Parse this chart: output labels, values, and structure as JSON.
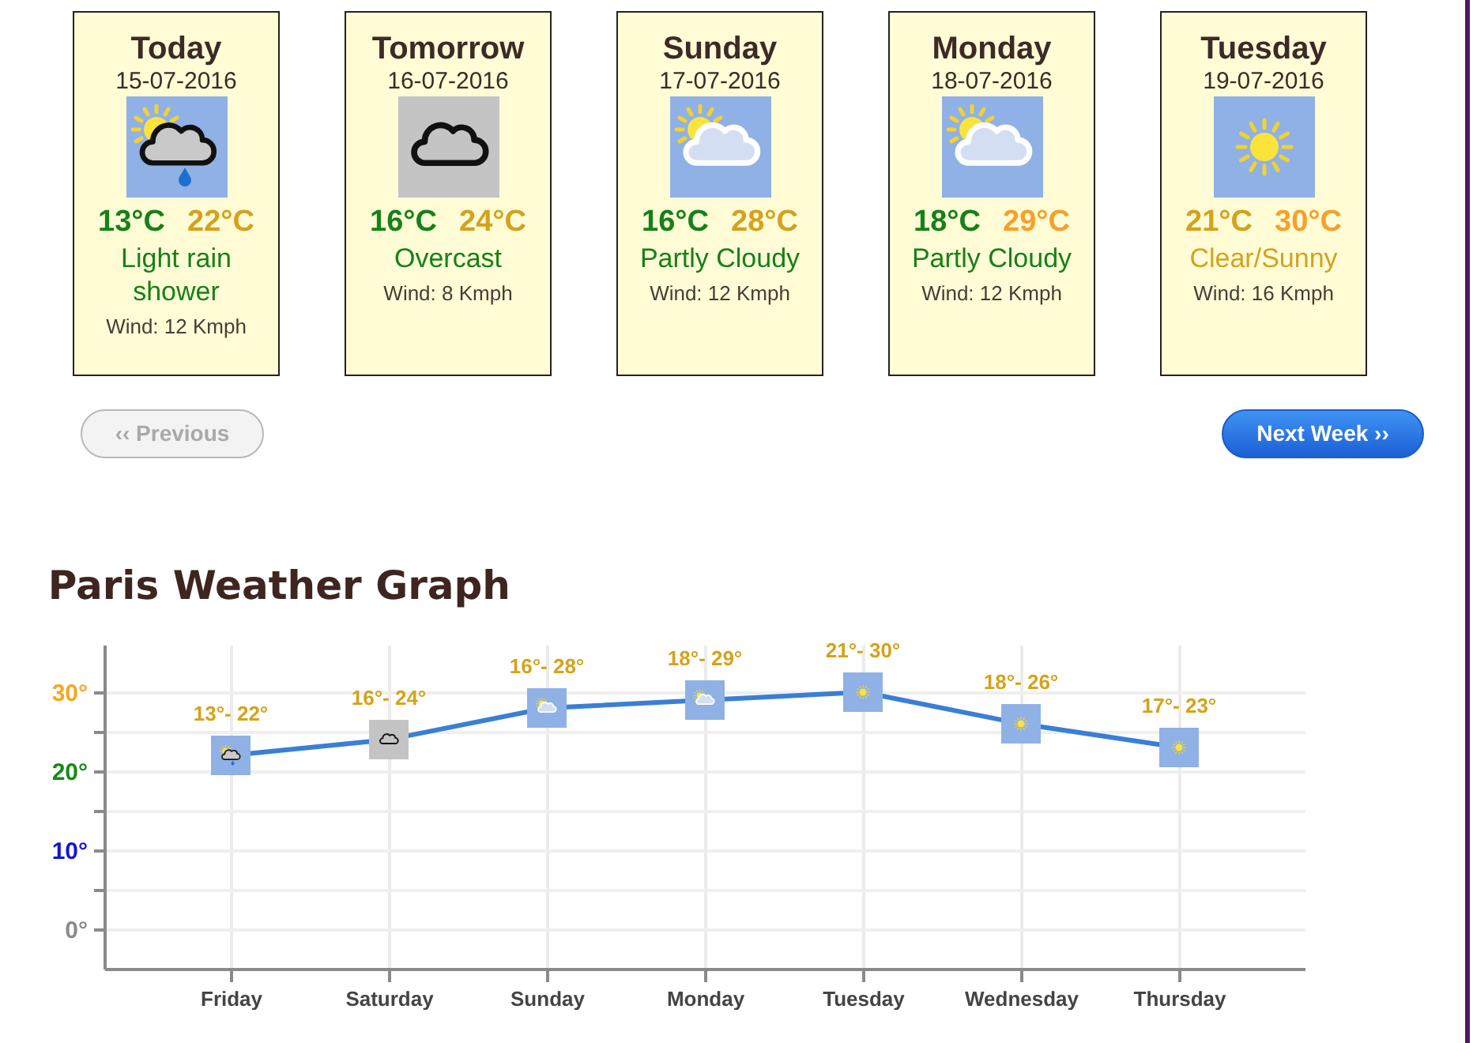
{
  "chart_data": [
    {
      "type": "other",
      "title": "Today",
      "subtitle": "15-07-2016",
      "annotations": [
        "13°C",
        "22°C",
        "Light rain shower",
        "Wind: 12 Kmph"
      ],
      "colors": [
        "#17801a",
        "#d4a21e",
        "#17801a",
        "#4a3b35"
      ]
    },
    {
      "type": "other",
      "title": "Tomorrow",
      "subtitle": "16-07-2016",
      "annotations": [
        "16°C",
        "24°C",
        "Overcast",
        "Wind: 8 Kmph"
      ],
      "colors": [
        "#17801a",
        "#d4a21e",
        "#17801a",
        "#4a3b35"
      ]
    },
    {
      "type": "other",
      "title": "Sunday",
      "subtitle": "17-07-2016",
      "annotations": [
        "16°C",
        "28°C",
        "Partly Cloudy",
        "Wind: 12 Kmph"
      ],
      "colors": [
        "#17801a",
        "#d4a21e",
        "#17801a",
        "#4a3b35"
      ]
    },
    {
      "type": "other",
      "title": "Monday",
      "subtitle": "18-07-2016",
      "annotations": [
        "18°C",
        "29°C",
        "Partly Cloudy",
        "Wind: 12 Kmph"
      ],
      "colors": [
        "#17801a",
        "#f7a02a",
        "#17801a",
        "#4a3b35"
      ]
    },
    {
      "type": "other",
      "title": "Tuesday",
      "subtitle": "19-07-2016",
      "annotations": [
        "21°C",
        "30°C",
        "Clear/Sunny",
        "Wind: 16 Kmph"
      ],
      "colors": [
        "#d4a21e",
        "#f7a02a",
        "#d4a21e",
        "#4a3b35"
      ]
    },
    {
      "type": "other",
      "annotations": [
        "‹‹ Previous",
        "Next Week ››"
      ]
    },
    {
      "type": "line",
      "title": "Paris Weather Graph",
      "categories": [
        "Friday",
        "Saturday",
        "Sunday",
        "Monday",
        "Tuesday",
        "Wednesday",
        "Thursday"
      ],
      "series": [
        {
          "color": "#3a7fd5",
          "values": [
            22,
            24,
            28,
            29,
            30,
            26,
            23
          ]
        }
      ],
      "colors": [
        "#8fb1e5",
        "#c4c4c4",
        "#8fb1e5",
        "#8fb1e5",
        "#8fb1e5",
        "#8fb1e5",
        "#8fb1e5"
      ],
      "marker": "square",
      "value_labels": [
        "13°- 22°",
        "16°- 24°",
        "16°- 28°",
        "18°- 29°",
        "21°- 30°",
        "18°- 26°",
        "17°- 23°"
      ],
      "ylim": [
        -5,
        36
      ],
      "yticks": [
        {
          "value": 0,
          "label": "0°"
        },
        {
          "value": 5,
          "label": null
        },
        {
          "value": 10,
          "label": "10°"
        },
        {
          "value": 15,
          "label": null
        },
        {
          "value": 20,
          "label": "20°"
        },
        {
          "value": 25,
          "label": null
        },
        {
          "value": 30,
          "label": "30°"
        }
      ],
      "grid": true
    }
  ]
}
